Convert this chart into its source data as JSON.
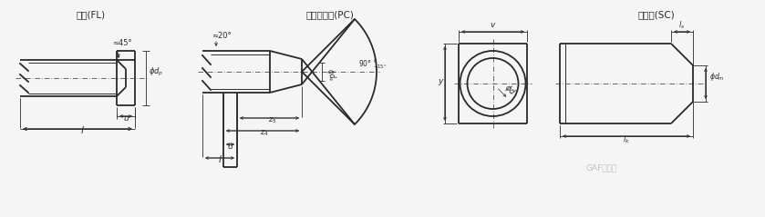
{
  "title1": "平端(FL)",
  "title2": "截锥导向端(PC)",
  "title3": "削削端(SC)",
  "bg_color": "#f5f5f5",
  "line_color": "#2a2a2a",
  "dim_color": "#2a2a2a",
  "watermark_text": "GAF螺丝君",
  "angle1": "≈45°",
  "angle2": "≈20°"
}
